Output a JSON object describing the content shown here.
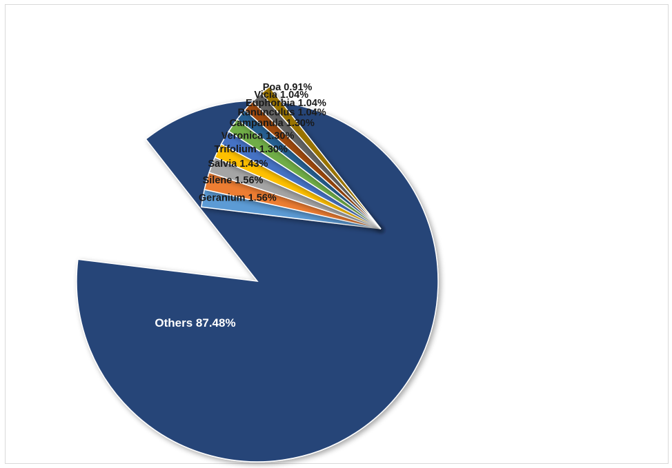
{
  "chart_data": {
    "type": "pie",
    "title": "",
    "slices": [
      {
        "name": "Others",
        "value": 87.48,
        "label": "Others 87.48%",
        "color": "#264478"
      },
      {
        "name": "Geranium",
        "value": 1.56,
        "label": "Geranium 1.56%",
        "color": "#5B9BD5"
      },
      {
        "name": "Silene",
        "value": 1.56,
        "label": "Silene 1.56%",
        "color": "#ED7D31"
      },
      {
        "name": "Salvia",
        "value": 1.43,
        "label": "Salvia 1.43%",
        "color": "#A5A5A5"
      },
      {
        "name": "Trifolium",
        "value": 1.3,
        "label": "Trifolium 1.30%",
        "color": "#FFC000"
      },
      {
        "name": "Veronica",
        "value": 1.3,
        "label": "Veronica 1.30%",
        "color": "#4472C4"
      },
      {
        "name": "Campanula",
        "value": 1.3,
        "label": "Campanula 1.30%",
        "color": "#70AD47"
      },
      {
        "name": "Ranunculus",
        "value": 1.04,
        "label": "Ranunculus 1.04%",
        "color": "#255E91"
      },
      {
        "name": "Euphorbia",
        "value": 1.04,
        "label": "Euphorbia 1.04%",
        "color": "#9E480E"
      },
      {
        "name": "Vicia",
        "value": 1.04,
        "label": "Vicia 1.04%",
        "color": "#636363"
      },
      {
        "name": "Poa",
        "value": 0.91,
        "label": "Poa 0.91%",
        "color": "#997300"
      }
    ],
    "exploded_slices": "all except Others",
    "legend": "none",
    "data_labels": "name and percent"
  }
}
